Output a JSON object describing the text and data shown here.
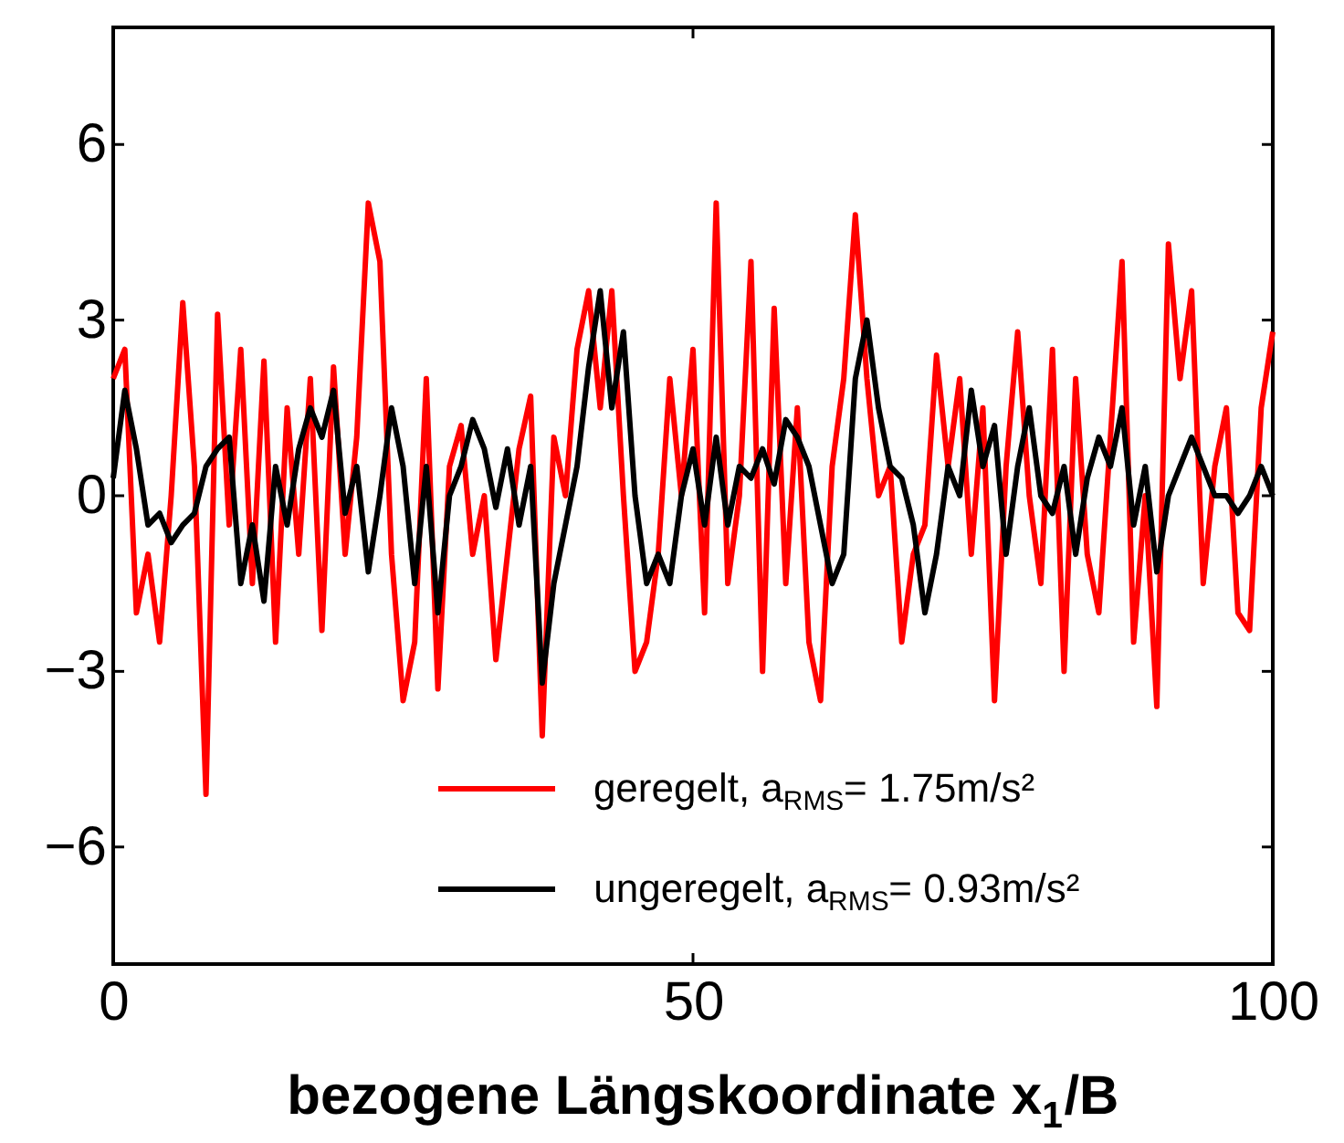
{
  "chart_data": {
    "type": "line",
    "xlabel": "bezogene Längskoordinate x$_{1}$/B",
    "x": [
      0,
      1,
      2,
      3,
      4,
      5,
      6,
      7,
      8,
      9,
      10,
      11,
      12,
      13,
      14,
      15,
      16,
      17,
      18,
      19,
      20,
      21,
      22,
      23,
      24,
      25,
      26,
      27,
      28,
      29,
      30,
      31,
      32,
      33,
      34,
      35,
      36,
      37,
      38,
      39,
      40,
      41,
      42,
      43,
      44,
      45,
      46,
      47,
      48,
      49,
      50,
      51,
      52,
      53,
      54,
      55,
      56,
      57,
      58,
      59,
      60,
      61,
      62,
      63,
      64,
      65,
      66,
      67,
      68,
      69,
      70,
      71,
      72,
      73,
      74,
      75,
      76,
      77,
      78,
      79,
      80,
      81,
      82,
      83,
      84,
      85,
      86,
      87,
      88,
      89,
      90,
      91,
      92,
      93,
      94,
      95,
      96,
      97,
      98,
      99,
      100
    ],
    "series": [
      {
        "name": "geregelt, a$_{RMS}$= 1.75m/s²",
        "color": "#ff0000",
        "values": [
          2,
          2.5,
          -2,
          -1,
          -2.5,
          0,
          3.3,
          0.5,
          -5.1,
          3.1,
          -0.5,
          2.5,
          -1.5,
          2.3,
          -2.5,
          1.5,
          -1,
          2,
          -2.3,
          2.2,
          -1,
          1,
          5,
          4,
          -1,
          -3.5,
          -2.5,
          2,
          -3.3,
          0.5,
          1.2,
          -1,
          0,
          -2.8,
          -1,
          0.8,
          1.7,
          -4.1,
          1,
          0,
          2.5,
          3.5,
          1.5,
          3.5,
          0,
          -3,
          -2.5,
          -1,
          2,
          0,
          2.5,
          -2,
          5,
          -1.5,
          0,
          4,
          -3,
          3.2,
          -1.5,
          1.5,
          -2.5,
          -3.5,
          0.5,
          2,
          4.8,
          2,
          0,
          0.5,
          -2.5,
          -1,
          -0.5,
          2.4,
          0.5,
          2,
          -1,
          1.5,
          -3.5,
          0.5,
          2.8,
          0,
          -1.5,
          2.5,
          -3,
          2,
          -1,
          -2,
          1,
          4,
          -2.5,
          0,
          -3.6,
          4.3,
          2,
          3.5,
          -1.5,
          0.5,
          1.5,
          -2,
          -2.3,
          1.5,
          2.8
        ]
      },
      {
        "name": "ungeregelt, a$_{RMS}$= 0.93m/s²",
        "color": "#000000",
        "values": [
          0.3,
          1.8,
          0.8,
          -0.5,
          -0.3,
          -0.8,
          -0.5,
          -0.3,
          0.5,
          0.8,
          1,
          -1.5,
          -0.5,
          -1.8,
          0.5,
          -0.5,
          0.8,
          1.5,
          1,
          1.8,
          -0.3,
          0.5,
          -1.3,
          0,
          1.5,
          0.5,
          -1.5,
          0.5,
          -2,
          0,
          0.5,
          1.3,
          0.8,
          -0.2,
          0.8,
          -0.5,
          0.5,
          -3.2,
          -1.5,
          -0.5,
          0.5,
          2.2,
          3.5,
          1.5,
          2.8,
          0,
          -1.5,
          -1,
          -1.5,
          0,
          0.8,
          -0.5,
          1,
          -0.5,
          0.5,
          0.3,
          0.8,
          0.2,
          1.3,
          1,
          0.5,
          -0.5,
          -1.5,
          -1,
          2,
          3,
          1.5,
          0.5,
          0.3,
          -0.5,
          -2,
          -1,
          0.5,
          0,
          1.8,
          0.5,
          1.2,
          -1,
          0.5,
          1.5,
          0,
          -0.3,
          0.5,
          -1,
          0.3,
          1,
          0.5,
          1.5,
          -0.5,
          0.5,
          -1.3,
          0,
          0.5,
          1,
          0.5,
          0,
          0,
          -0.3,
          0,
          0.5,
          0
        ]
      }
    ],
    "xlim": [
      0,
      100
    ],
    "ylim": [
      -8,
      8
    ],
    "xticks": [
      0,
      50,
      100
    ],
    "yticks": [
      -6,
      -3,
      0,
      3,
      6
    ],
    "grid": false,
    "legend": "bottom right",
    "marker": "none",
    "line_style": "solid"
  }
}
